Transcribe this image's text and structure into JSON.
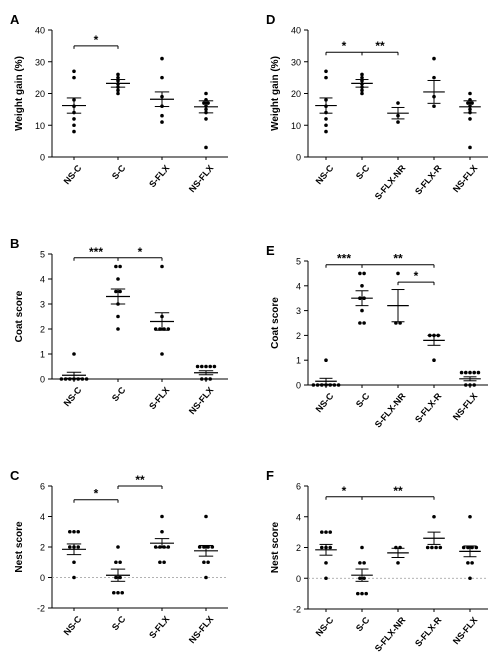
{
  "chart_data": [
    {
      "panel_label": "A",
      "type": "scatter",
      "ylabel": "Weight gain (%)",
      "ylim": [
        0,
        40
      ],
      "yticks": [
        0,
        10,
        20,
        30,
        40
      ],
      "dashed_zero": false,
      "categories": [
        "NS-C",
        "S-C",
        "S-FLX",
        "NS-FLX"
      ],
      "groups": [
        {
          "name": "NS-C",
          "mean": 16.2,
          "sem": 2.4,
          "points": [
            27,
            25,
            18,
            16,
            14,
            12,
            10,
            8
          ]
        },
        {
          "name": "S-C",
          "mean": 23.2,
          "sem": 1.2,
          "points": [
            26,
            25,
            24,
            23,
            22,
            21,
            20
          ]
        },
        {
          "name": "S-FLX",
          "mean": 18.2,
          "sem": 2.3,
          "points": [
            31,
            25,
            19,
            16,
            13,
            11
          ]
        },
        {
          "name": "NS-FLX",
          "mean": 15.8,
          "sem": 1.9,
          "points": [
            20,
            18,
            17,
            17,
            16,
            15,
            14,
            12,
            3
          ]
        }
      ],
      "significance": [
        {
          "from": 0,
          "to": 1,
          "label": "*",
          "y": 35
        }
      ]
    },
    {
      "panel_label": "B",
      "type": "scatter",
      "ylabel": "Coat score",
      "ylim": [
        0,
        5
      ],
      "yticks": [
        0,
        1,
        2,
        3,
        4,
        5
      ],
      "dashed_zero": false,
      "categories": [
        "NS-C",
        "S-C",
        "S-FLX",
        "NS-FLX"
      ],
      "groups": [
        {
          "name": "NS-C",
          "mean": 0.15,
          "sem": 0.12,
          "points": [
            1,
            0,
            0,
            0,
            0,
            0,
            0,
            0
          ]
        },
        {
          "name": "S-C",
          "mean": 3.3,
          "sem": 0.3,
          "points": [
            4.5,
            4.5,
            4,
            3.5,
            3.5,
            3,
            2.5,
            2
          ]
        },
        {
          "name": "S-FLX",
          "mean": 2.3,
          "sem": 0.35,
          "points": [
            4.5,
            2.5,
            2,
            2,
            2,
            2,
            1
          ]
        },
        {
          "name": "NS-FLX",
          "mean": 0.25,
          "sem": 0.08,
          "points": [
            0.5,
            0.5,
            0.5,
            0.5,
            0.5,
            0,
            0,
            0
          ]
        }
      ],
      "significance": [
        {
          "from": 0,
          "to": 1,
          "label": "***",
          "y": 4.85
        },
        {
          "from": 1,
          "to": 2,
          "label": "*",
          "y": 4.85
        }
      ]
    },
    {
      "panel_label": "C",
      "type": "scatter",
      "ylabel": "Nest score",
      "ylim": [
        -2,
        6
      ],
      "yticks": [
        -2,
        0,
        2,
        4,
        6
      ],
      "dashed_zero": true,
      "categories": [
        "NS-C",
        "S-C",
        "S-FLX",
        "NS-FLX"
      ],
      "groups": [
        {
          "name": "NS-C",
          "mean": 1.85,
          "sem": 0.35,
          "points": [
            3,
            3,
            3,
            2,
            2,
            2,
            1,
            0
          ]
        },
        {
          "name": "S-C",
          "mean": 0.15,
          "sem": 0.4,
          "points": [
            2,
            1,
            1,
            0,
            0,
            -1,
            -1,
            -1
          ]
        },
        {
          "name": "S-FLX",
          "mean": 2.25,
          "sem": 0.3,
          "points": [
            4,
            3,
            2,
            2,
            2,
            2,
            1,
            1
          ]
        },
        {
          "name": "NS-FLX",
          "mean": 1.75,
          "sem": 0.35,
          "points": [
            4,
            2,
            2,
            2,
            2,
            1,
            1,
            0
          ]
        }
      ],
      "significance": [
        {
          "from": 0,
          "to": 1,
          "label": "*",
          "y": 5.1
        },
        {
          "from": 1,
          "to": 2,
          "label": "**",
          "y": 6.0
        }
      ]
    },
    {
      "panel_label": "D",
      "type": "scatter",
      "ylabel": "Weight gain (%)",
      "ylim": [
        0,
        40
      ],
      "yticks": [
        0,
        10,
        20,
        30,
        40
      ],
      "dashed_zero": false,
      "categories": [
        "NS-C",
        "S-C",
        "S-FLX-NR",
        "S-FLX-R",
        "NS-FLX"
      ],
      "groups": [
        {
          "name": "NS-C",
          "mean": 16.2,
          "sem": 2.4,
          "points": [
            27,
            25,
            18,
            16,
            14,
            12,
            10,
            8
          ]
        },
        {
          "name": "S-C",
          "mean": 23.2,
          "sem": 1.2,
          "points": [
            26,
            25,
            24,
            23,
            22,
            21,
            20
          ]
        },
        {
          "name": "S-FLX-NR",
          "mean": 13.8,
          "sem": 1.8,
          "points": [
            17,
            13,
            11
          ]
        },
        {
          "name": "S-FLX-R",
          "mean": 20.5,
          "sem": 3.6,
          "points": [
            31,
            25,
            19,
            16
          ]
        },
        {
          "name": "NS-FLX",
          "mean": 15.8,
          "sem": 1.9,
          "points": [
            20,
            18,
            17,
            17,
            16,
            15,
            14,
            12,
            3
          ]
        }
      ],
      "significance": [
        {
          "from": 0,
          "to": 1,
          "label": "*",
          "y": 33
        },
        {
          "from": 1,
          "to": 2,
          "label": "**",
          "y": 33
        }
      ]
    },
    {
      "panel_label": "E",
      "type": "scatter",
      "ylabel": "Coat score",
      "ylim": [
        0,
        5
      ],
      "yticks": [
        0,
        1,
        2,
        3,
        4,
        5
      ],
      "dashed_zero": false,
      "categories": [
        "NS-C",
        "S-C",
        "S-FLX-NR",
        "S-FLX-R",
        "NS-FLX"
      ],
      "groups": [
        {
          "name": "NS-C",
          "mean": 0.15,
          "sem": 0.12,
          "points": [
            1,
            0,
            0,
            0,
            0,
            0,
            0,
            0
          ]
        },
        {
          "name": "S-C",
          "mean": 3.5,
          "sem": 0.3,
          "points": [
            4.5,
            4.5,
            4,
            3.5,
            3.5,
            3,
            2.5,
            2.5
          ]
        },
        {
          "name": "S-FLX-NR",
          "mean": 3.2,
          "sem": 0.65,
          "points": [
            4.5,
            2.5,
            2.5
          ]
        },
        {
          "name": "S-FLX-R",
          "mean": 1.8,
          "sem": 0.2,
          "points": [
            2,
            2,
            2,
            1
          ]
        },
        {
          "name": "NS-FLX",
          "mean": 0.25,
          "sem": 0.08,
          "points": [
            0.5,
            0.5,
            0.5,
            0.5,
            0.5,
            0,
            0,
            0
          ]
        }
      ],
      "significance": [
        {
          "from": 0,
          "to": 1,
          "label": "***",
          "y": 4.85
        },
        {
          "from": 1,
          "to": 3,
          "label": "**",
          "y": 4.85
        },
        {
          "from": 2,
          "to": 3,
          "label": "*",
          "y": 4.15
        }
      ]
    },
    {
      "panel_label": "F",
      "type": "scatter",
      "ylabel": "Nest score",
      "ylim": [
        -2,
        6
      ],
      "yticks": [
        -2,
        0,
        2,
        4,
        6
      ],
      "dashed_zero": true,
      "categories": [
        "NS-C",
        "S-C",
        "S-FLX-NR",
        "S-FLX-R",
        "NS-FLX"
      ],
      "groups": [
        {
          "name": "NS-C",
          "mean": 1.85,
          "sem": 0.35,
          "points": [
            3,
            3,
            3,
            2,
            2,
            2,
            1,
            0
          ]
        },
        {
          "name": "S-C",
          "mean": 0.2,
          "sem": 0.4,
          "points": [
            2,
            1,
            1,
            0,
            0,
            -1,
            -1,
            -1
          ]
        },
        {
          "name": "S-FLX-NR",
          "mean": 1.65,
          "sem": 0.3,
          "points": [
            2,
            2,
            1
          ]
        },
        {
          "name": "S-FLX-R",
          "mean": 2.6,
          "sem": 0.4,
          "points": [
            4,
            2,
            2,
            2,
            2
          ]
        },
        {
          "name": "NS-FLX",
          "mean": 1.75,
          "sem": 0.35,
          "points": [
            4,
            2,
            2,
            2,
            2,
            1,
            1,
            0
          ]
        }
      ],
      "significance": [
        {
          "from": 0,
          "to": 1,
          "label": "*",
          "y": 5.3
        },
        {
          "from": 1,
          "to": 3,
          "label": "**",
          "y": 5.3
        }
      ]
    }
  ]
}
